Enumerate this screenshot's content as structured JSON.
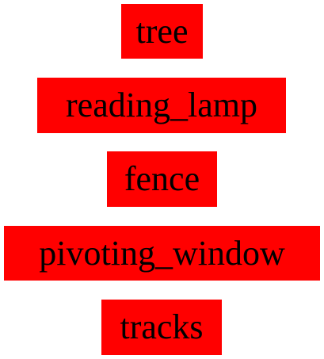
{
  "labels": [
    {
      "text": "tree"
    },
    {
      "text": "reading_lamp"
    },
    {
      "text": "fence"
    },
    {
      "text": "pivoting_window"
    },
    {
      "text": "tracks"
    }
  ],
  "colors": {
    "box_background": "#ff0000",
    "text": "#000000",
    "page_background": "#ffffff"
  }
}
